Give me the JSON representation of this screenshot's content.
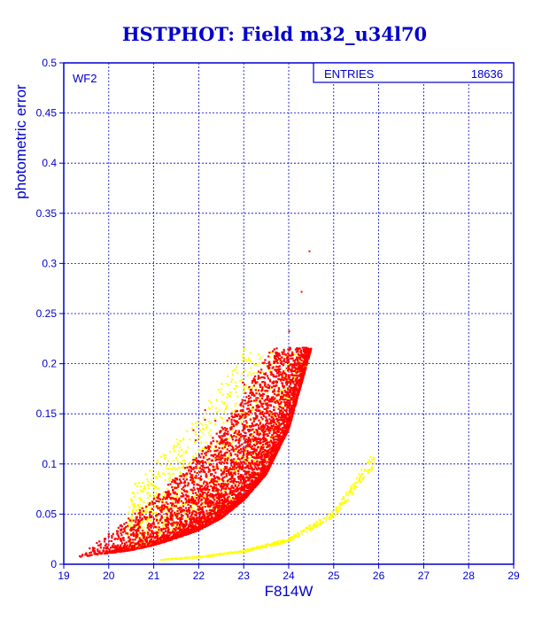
{
  "chart_data": {
    "type": "scatter",
    "title": "HSTPHOT: Field m32_u34l70",
    "xlabel": "F814W",
    "ylabel": "photometric error",
    "xlim": [
      19,
      29
    ],
    "ylim": [
      0,
      0.5
    ],
    "x_ticks": [
      "19",
      "20",
      "21",
      "22",
      "23",
      "24",
      "25",
      "26",
      "27",
      "28",
      "29"
    ],
    "y_ticks": [
      "0",
      "0.05",
      "0.1",
      "0.15",
      "0.2",
      "0.25",
      "0.3",
      "0.35",
      "0.4",
      "0.45",
      "0.5"
    ],
    "grid": true,
    "panel_label": "WF2",
    "stats_box": {
      "label": "ENTRIES",
      "value": "18636"
    },
    "colors": {
      "axis": "#0000cc",
      "grid": "#0000cc",
      "main_locus": "#ff0000",
      "scatter": "#ffff00"
    },
    "series": [
      {
        "color": "red",
        "description_points": [
          {
            "x": 19.3,
            "y": 0.007
          },
          {
            "x": 20.0,
            "y": 0.011
          },
          {
            "x": 20.5,
            "y": 0.014
          },
          {
            "x": 21.0,
            "y": 0.019
          },
          {
            "x": 21.5,
            "y": 0.026
          },
          {
            "x": 22.0,
            "y": 0.034
          },
          {
            "x": 22.5,
            "y": 0.046
          },
          {
            "x": 23.0,
            "y": 0.064
          },
          {
            "x": 23.5,
            "y": 0.09
          },
          {
            "x": 24.0,
            "y": 0.135
          },
          {
            "x": 24.5,
            "y": 0.215
          }
        ]
      },
      {
        "color": "yellow",
        "description_points": [
          {
            "x": 21.0,
            "y": 0.004
          },
          {
            "x": 22.0,
            "y": 0.007
          },
          {
            "x": 23.0,
            "y": 0.013
          },
          {
            "x": 24.0,
            "y": 0.024
          },
          {
            "x": 25.0,
            "y": 0.05
          },
          {
            "x": 25.5,
            "y": 0.08
          },
          {
            "x": 25.8,
            "y": 0.1
          }
        ]
      }
    ]
  }
}
